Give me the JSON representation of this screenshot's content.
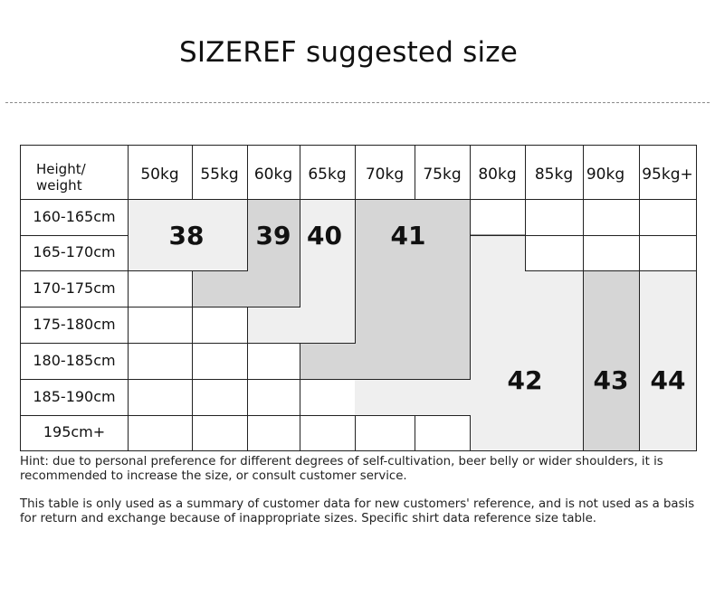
{
  "title": "SIZEREF suggested size",
  "table": {
    "corner_label": "Height/\nweight",
    "weights": [
      "50kg",
      "55kg",
      "60kg",
      "65kg",
      "70kg",
      "75kg",
      "80kg",
      "85kg",
      "90kg",
      "95kg+"
    ],
    "heights": [
      "160-165cm",
      "165-170cm",
      "170-175cm",
      "175-180cm",
      "180-185cm",
      "185-190cm",
      "195cm+"
    ],
    "sizes": [
      "38",
      "39",
      "40",
      "41",
      "42",
      "43",
      "44"
    ]
  },
  "colors": {
    "light_region": "#efefef",
    "dark_region": "#d6d6d6",
    "grid_line": "#222222"
  },
  "hint": "Hint: due to personal preference for different degrees of self-cultivation, beer belly or wider shoulders, it is recommended to increase the size, or consult customer service.",
  "note": "This table is only used as a summary of customer data for new customers' reference, and is not used as a basis for return and exchange because of inappropriate sizes. Specific shirt data reference size table."
}
